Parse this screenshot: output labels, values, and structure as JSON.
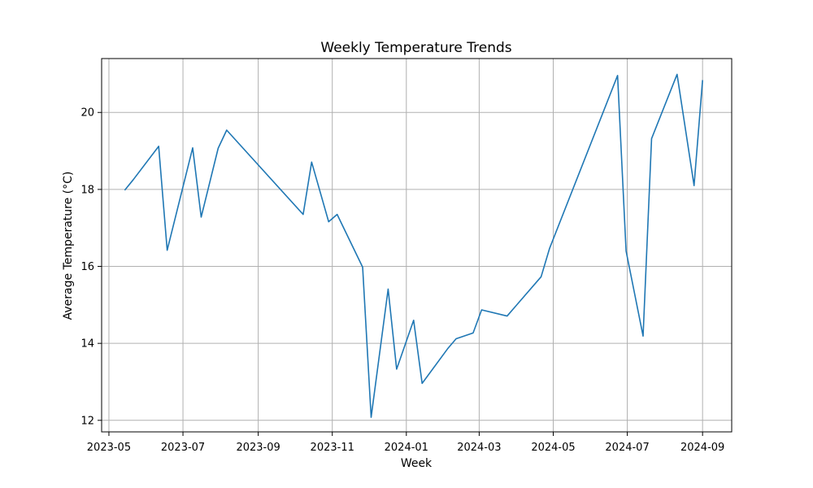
{
  "chart_data": {
    "type": "line",
    "title": "Weekly Temperature Trends",
    "xlabel": "Week",
    "ylabel": "Average Temperature (°C)",
    "grid": true,
    "xlim": [
      "2023-04-25",
      "2024-09-25"
    ],
    "ylim": [
      11.7,
      21.4
    ],
    "x_ticks": [
      "2023-05",
      "2023-07",
      "2023-09",
      "2023-11",
      "2024-01",
      "2024-03",
      "2024-05",
      "2024-07",
      "2024-09"
    ],
    "y_ticks": [
      12,
      14,
      16,
      18,
      20
    ],
    "series": [
      {
        "color": "#1f77b4",
        "points": [
          {
            "x": "2023-05-14",
            "y": 17.98
          },
          {
            "x": "2023-05-21",
            "y": 18.25
          },
          {
            "x": "2023-06-11",
            "y": 19.12
          },
          {
            "x": "2023-06-18",
            "y": 16.42
          },
          {
            "x": "2023-07-09",
            "y": 19.08
          },
          {
            "x": "2023-07-16",
            "y": 17.28
          },
          {
            "x": "2023-07-30",
            "y": 19.07
          },
          {
            "x": "2023-08-06",
            "y": 19.54
          },
          {
            "x": "2023-10-08",
            "y": 17.35
          },
          {
            "x": "2023-10-15",
            "y": 18.71
          },
          {
            "x": "2023-10-29",
            "y": 17.16
          },
          {
            "x": "2023-11-05",
            "y": 17.35
          },
          {
            "x": "2023-11-26",
            "y": 15.98
          },
          {
            "x": "2023-12-03",
            "y": 12.08
          },
          {
            "x": "2023-12-17",
            "y": 15.41
          },
          {
            "x": "2023-12-24",
            "y": 13.33
          },
          {
            "x": "2024-01-07",
            "y": 14.6
          },
          {
            "x": "2024-01-14",
            "y": 12.96
          },
          {
            "x": "2024-02-04",
            "y": 13.86
          },
          {
            "x": "2024-02-11",
            "y": 14.12
          },
          {
            "x": "2024-02-25",
            "y": 14.27
          },
          {
            "x": "2024-03-03",
            "y": 14.87
          },
          {
            "x": "2024-03-24",
            "y": 14.71
          },
          {
            "x": "2024-04-21",
            "y": 15.73
          },
          {
            "x": "2024-04-28",
            "y": 16.47
          },
          {
            "x": "2024-06-23",
            "y": 20.96
          },
          {
            "x": "2024-06-30",
            "y": 16.4
          },
          {
            "x": "2024-07-14",
            "y": 14.19
          },
          {
            "x": "2024-07-21",
            "y": 19.32
          },
          {
            "x": "2024-08-11",
            "y": 20.99
          },
          {
            "x": "2024-08-25",
            "y": 18.1
          },
          {
            "x": "2024-09-01",
            "y": 20.84
          }
        ]
      }
    ]
  }
}
